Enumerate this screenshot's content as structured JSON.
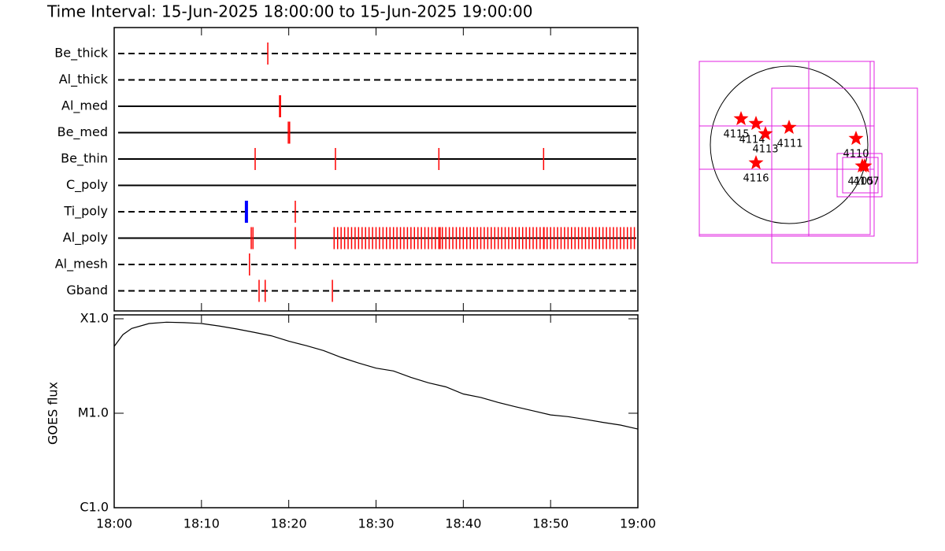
{
  "title": "Time Interval: 15-Jun-2025 18:00:00 to 15-Jun-2025 19:00:00",
  "chart_data": [
    {
      "type": "timeline",
      "xlim": [
        0,
        60
      ],
      "rows": [
        {
          "name": "Be_thick",
          "line": "dashed",
          "color": "#ff0000",
          "times": [
            17.6
          ]
        },
        {
          "name": "Al_thick",
          "line": "dashed",
          "color": "#ff0000",
          "times": []
        },
        {
          "name": "Al_med",
          "line": "solid",
          "color": "#ff0000",
          "times": [
            18.95,
            19.05
          ]
        },
        {
          "name": "Be_med",
          "line": "solid",
          "color": "#ff0000",
          "times": [
            19.95,
            20.1
          ]
        },
        {
          "name": "Be_thin",
          "line": "solid",
          "color": "#ff0000",
          "times": [
            16.15,
            25.35,
            37.2,
            49.2
          ]
        },
        {
          "name": "C_poly",
          "line": "solid",
          "color": "#ff0000",
          "times": []
        },
        {
          "name": "Ti_poly",
          "line": "dashed",
          "color": "#ff0000",
          "colors": [
            "#0000ff",
            "#ff0000"
          ],
          "times": [
            15.15,
            20.75
          ]
        },
        {
          "name": "Al_poly",
          "line": "solid",
          "color": "#ff0000",
          "times": [
            15.7,
            15.9,
            20.75,
            25.2,
            25.6,
            26.0,
            26.4,
            26.8,
            27.2,
            27.6,
            28.0,
            28.4,
            28.8,
            29.2,
            29.6,
            30.0,
            30.4,
            30.8,
            31.2,
            31.6,
            32.0,
            32.4,
            32.8,
            33.2,
            33.6,
            34.0,
            34.4,
            34.8,
            35.2,
            35.6,
            36.0,
            36.4,
            36.8,
            37.2,
            37.35,
            37.6,
            38.0,
            38.4,
            38.8,
            39.2,
            39.6,
            40.0,
            40.4,
            40.8,
            41.2,
            41.6,
            42.0,
            42.4,
            42.8,
            43.2,
            43.6,
            44.0,
            44.4,
            44.8,
            45.2,
            45.6,
            46.0,
            46.4,
            46.8,
            47.2,
            47.6,
            48.0,
            48.4,
            48.8,
            49.2,
            49.25,
            49.6,
            50.0,
            50.4,
            50.8,
            51.2,
            51.6,
            52.0,
            52.4,
            52.8,
            53.2,
            53.6,
            54.0,
            54.4,
            54.8,
            55.2,
            55.6,
            56.0,
            56.4,
            56.8,
            57.2,
            57.6,
            58.0,
            58.4,
            58.8,
            59.2,
            59.6
          ]
        },
        {
          "name": "Al_mesh",
          "line": "dashed",
          "color": "#ff0000",
          "times": [
            15.5
          ]
        },
        {
          "name": "Gband",
          "line": "dashed",
          "color": "#ff0000",
          "times": [
            16.6,
            17.3,
            25.0
          ]
        }
      ]
    },
    {
      "type": "line",
      "ylabel": "GOES flux",
      "log_y": true,
      "color": "#000000",
      "xlim": [
        0,
        60
      ],
      "xticks": [
        {
          "value": 0,
          "label": "18:00"
        },
        {
          "value": 10,
          "label": "18:10"
        },
        {
          "value": 20,
          "label": "18:20"
        },
        {
          "value": 30,
          "label": "18:30"
        },
        {
          "value": 40,
          "label": "18:40"
        },
        {
          "value": 50,
          "label": "18:50"
        },
        {
          "value": 60,
          "label": "19:00"
        }
      ],
      "ylim": [
        1e-06,
        0.00011
      ],
      "yticks": [
        {
          "value": 1e-06,
          "label": "C1.0"
        },
        {
          "value": 1e-05,
          "label": "M1.0"
        },
        {
          "value": 0.0001,
          "label": "X1.0"
        }
      ],
      "x": [
        0,
        1,
        2,
        4,
        6,
        8,
        10,
        12,
        14,
        16,
        18,
        20,
        22,
        24,
        26,
        28,
        30,
        32,
        34,
        36,
        38,
        40,
        42,
        44,
        46,
        48,
        50,
        52,
        54,
        56,
        58,
        60
      ],
      "values": [
        5.1e-05,
        6.8e-05,
        7.9e-05,
        8.9e-05,
        9.2e-05,
        9.1e-05,
        8.9e-05,
        8.4e-05,
        7.8e-05,
        7.2e-05,
        6.6e-05,
        5.8e-05,
        5.2e-05,
        4.6e-05,
        3.9e-05,
        3.4e-05,
        3e-05,
        2.8e-05,
        2.4e-05,
        2.1e-05,
        1.9e-05,
        1.6e-05,
        1.47e-05,
        1.3e-05,
        1.17e-05,
        1.06e-05,
        9.6e-06,
        9.2e-06,
        8.6e-06,
        8e-06,
        7.5e-06,
        6.8e-06
      ]
    }
  ],
  "map": {
    "regions": [
      "4115",
      "4114",
      "4113",
      "4111",
      "4110",
      "4116",
      "4105",
      "4107"
    ]
  }
}
